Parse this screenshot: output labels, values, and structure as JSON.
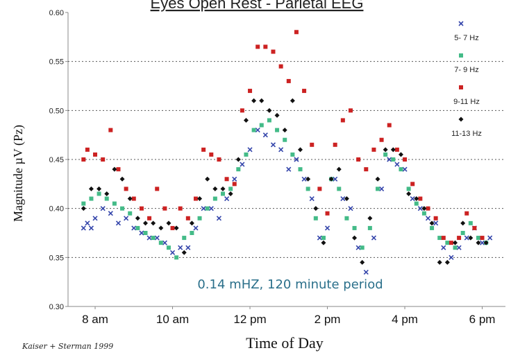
{
  "chart_data": {
    "type": "scatter",
    "title": "Eyes Open Rest - Parietal EEG",
    "xlabel": "Time of Day",
    "ylabel": "Magnitude µV (Pz)",
    "annotation": "0.14 mHZ, 120 minute period",
    "credit": "Kaiser + Sterman 1999",
    "ylim": [
      0.3,
      0.6
    ],
    "yticks": [
      "0.30",
      "0.35",
      "0.40",
      "0.45",
      "0.50",
      "0.55",
      "0.60"
    ],
    "xlim": [
      7.3,
      18.6
    ],
    "xticks": [
      {
        "label": "8 am",
        "value": 8
      },
      {
        "label": "10 am",
        "value": 10
      },
      {
        "label": "12 pm",
        "value": 12
      },
      {
        "label": "2 pm",
        "value": 14
      },
      {
        "label": "4 pm",
        "value": 16
      },
      {
        "label": "6 pm",
        "value": 18
      }
    ],
    "grid": "horizontal dotted at 0.35, 0.40, 0.45, 0.50, 0.55",
    "legend_position": "right",
    "series": [
      {
        "name": "5- 7 Hz",
        "color": "#3344aa",
        "marker": "x",
        "points": [
          [
            7.7,
            0.38
          ],
          [
            7.8,
            0.385
          ],
          [
            7.9,
            0.38
          ],
          [
            8.0,
            0.39
          ],
          [
            8.2,
            0.4
          ],
          [
            8.4,
            0.395
          ],
          [
            8.6,
            0.385
          ],
          [
            8.8,
            0.39
          ],
          [
            9.0,
            0.38
          ],
          [
            9.2,
            0.375
          ],
          [
            9.4,
            0.37
          ],
          [
            9.6,
            0.37
          ],
          [
            9.8,
            0.365
          ],
          [
            10.0,
            0.355
          ],
          [
            10.2,
            0.36
          ],
          [
            10.4,
            0.36
          ],
          [
            10.6,
            0.38
          ],
          [
            10.8,
            0.4
          ],
          [
            11.0,
            0.4
          ],
          [
            11.2,
            0.39
          ],
          [
            11.4,
            0.41
          ],
          [
            11.6,
            0.43
          ],
          [
            11.8,
            0.445
          ],
          [
            12.0,
            0.46
          ],
          [
            12.2,
            0.48
          ],
          [
            12.4,
            0.475
          ],
          [
            12.6,
            0.465
          ],
          [
            12.8,
            0.46
          ],
          [
            13.0,
            0.44
          ],
          [
            13.2,
            0.45
          ],
          [
            13.4,
            0.43
          ],
          [
            13.6,
            0.41
          ],
          [
            13.8,
            0.37
          ],
          [
            14.0,
            0.38
          ],
          [
            14.2,
            0.43
          ],
          [
            14.4,
            0.41
          ],
          [
            14.6,
            0.4
          ],
          [
            14.8,
            0.36
          ],
          [
            15.0,
            0.335
          ],
          [
            15.2,
            0.37
          ],
          [
            15.4,
            0.42
          ],
          [
            15.6,
            0.45
          ],
          [
            15.8,
            0.445
          ],
          [
            16.0,
            0.44
          ],
          [
            16.2,
            0.41
          ],
          [
            16.4,
            0.4
          ],
          [
            16.6,
            0.39
          ],
          [
            16.8,
            0.385
          ],
          [
            17.0,
            0.36
          ],
          [
            17.2,
            0.35
          ],
          [
            17.4,
            0.36
          ],
          [
            17.6,
            0.37
          ],
          [
            17.8,
            0.38
          ],
          [
            18.0,
            0.365
          ],
          [
            18.2,
            0.37
          ]
        ]
      },
      {
        "name": "7- 9 Hz",
        "color": "#44bb88",
        "marker": "square",
        "points": [
          [
            7.7,
            0.405
          ],
          [
            7.9,
            0.41
          ],
          [
            8.1,
            0.415
          ],
          [
            8.3,
            0.41
          ],
          [
            8.5,
            0.405
          ],
          [
            8.7,
            0.4
          ],
          [
            8.9,
            0.395
          ],
          [
            9.1,
            0.38
          ],
          [
            9.3,
            0.375
          ],
          [
            9.5,
            0.37
          ],
          [
            9.7,
            0.365
          ],
          [
            9.9,
            0.36
          ],
          [
            10.1,
            0.35
          ],
          [
            10.3,
            0.37
          ],
          [
            10.5,
            0.375
          ],
          [
            10.7,
            0.39
          ],
          [
            10.9,
            0.4
          ],
          [
            11.1,
            0.41
          ],
          [
            11.3,
            0.415
          ],
          [
            11.5,
            0.42
          ],
          [
            11.7,
            0.44
          ],
          [
            11.9,
            0.455
          ],
          [
            12.1,
            0.48
          ],
          [
            12.3,
            0.485
          ],
          [
            12.5,
            0.49
          ],
          [
            12.7,
            0.48
          ],
          [
            12.9,
            0.47
          ],
          [
            13.1,
            0.455
          ],
          [
            13.3,
            0.44
          ],
          [
            13.5,
            0.42
          ],
          [
            13.7,
            0.39
          ],
          [
            13.9,
            0.37
          ],
          [
            14.1,
            0.43
          ],
          [
            14.3,
            0.42
          ],
          [
            14.5,
            0.39
          ],
          [
            14.7,
            0.38
          ],
          [
            14.9,
            0.36
          ],
          [
            15.1,
            0.38
          ],
          [
            15.3,
            0.42
          ],
          [
            15.5,
            0.455
          ],
          [
            15.7,
            0.45
          ],
          [
            15.9,
            0.44
          ],
          [
            16.1,
            0.42
          ],
          [
            16.3,
            0.405
          ],
          [
            16.5,
            0.395
          ],
          [
            16.7,
            0.38
          ],
          [
            16.9,
            0.37
          ],
          [
            17.1,
            0.365
          ],
          [
            17.3,
            0.36
          ],
          [
            17.5,
            0.375
          ],
          [
            17.7,
            0.385
          ],
          [
            17.9,
            0.37
          ],
          [
            18.1,
            0.365
          ]
        ]
      },
      {
        "name": "9-11 Hz",
        "color": "#cc2222",
        "marker": "square",
        "points": [
          [
            7.7,
            0.45
          ],
          [
            7.8,
            0.46
          ],
          [
            8.0,
            0.455
          ],
          [
            8.2,
            0.45
          ],
          [
            8.4,
            0.48
          ],
          [
            8.6,
            0.44
          ],
          [
            8.8,
            0.42
          ],
          [
            9.0,
            0.41
          ],
          [
            9.2,
            0.4
          ],
          [
            9.4,
            0.39
          ],
          [
            9.6,
            0.42
          ],
          [
            9.8,
            0.4
          ],
          [
            10.0,
            0.38
          ],
          [
            10.2,
            0.4
          ],
          [
            10.4,
            0.39
          ],
          [
            10.6,
            0.41
          ],
          [
            10.8,
            0.46
          ],
          [
            11.0,
            0.455
          ],
          [
            11.2,
            0.45
          ],
          [
            11.4,
            0.43
          ],
          [
            11.6,
            0.425
          ],
          [
            11.8,
            0.5
          ],
          [
            12.0,
            0.52
          ],
          [
            12.2,
            0.565
          ],
          [
            12.4,
            0.565
          ],
          [
            12.6,
            0.56
          ],
          [
            12.8,
            0.545
          ],
          [
            13.0,
            0.53
          ],
          [
            13.2,
            0.58
          ],
          [
            13.4,
            0.52
          ],
          [
            13.6,
            0.465
          ],
          [
            13.8,
            0.42
          ],
          [
            14.0,
            0.395
          ],
          [
            14.2,
            0.465
          ],
          [
            14.4,
            0.49
          ],
          [
            14.6,
            0.5
          ],
          [
            14.8,
            0.45
          ],
          [
            15.0,
            0.44
          ],
          [
            15.2,
            0.46
          ],
          [
            15.4,
            0.47
          ],
          [
            15.6,
            0.485
          ],
          [
            15.8,
            0.46
          ],
          [
            16.0,
            0.45
          ],
          [
            16.2,
            0.425
          ],
          [
            16.4,
            0.41
          ],
          [
            16.6,
            0.4
          ],
          [
            16.8,
            0.39
          ],
          [
            17.0,
            0.37
          ],
          [
            17.2,
            0.365
          ],
          [
            17.4,
            0.37
          ],
          [
            17.6,
            0.395
          ],
          [
            17.8,
            0.38
          ],
          [
            18.0,
            0.37
          ]
        ]
      },
      {
        "name": "11-13 Hz",
        "color": "#111111",
        "marker": "diamond",
        "points": [
          [
            7.7,
            0.4
          ],
          [
            7.9,
            0.42
          ],
          [
            8.1,
            0.42
          ],
          [
            8.3,
            0.415
          ],
          [
            8.5,
            0.44
          ],
          [
            8.7,
            0.43
          ],
          [
            8.9,
            0.41
          ],
          [
            9.1,
            0.39
          ],
          [
            9.3,
            0.385
          ],
          [
            9.5,
            0.385
          ],
          [
            9.7,
            0.38
          ],
          [
            9.9,
            0.385
          ],
          [
            10.1,
            0.38
          ],
          [
            10.3,
            0.355
          ],
          [
            10.5,
            0.385
          ],
          [
            10.7,
            0.41
          ],
          [
            10.9,
            0.43
          ],
          [
            11.1,
            0.42
          ],
          [
            11.3,
            0.42
          ],
          [
            11.5,
            0.415
          ],
          [
            11.7,
            0.45
          ],
          [
            11.9,
            0.49
          ],
          [
            12.1,
            0.51
          ],
          [
            12.3,
            0.51
          ],
          [
            12.5,
            0.5
          ],
          [
            12.7,
            0.495
          ],
          [
            12.9,
            0.48
          ],
          [
            13.1,
            0.51
          ],
          [
            13.3,
            0.46
          ],
          [
            13.5,
            0.43
          ],
          [
            13.7,
            0.4
          ],
          [
            13.9,
            0.365
          ],
          [
            14.1,
            0.43
          ],
          [
            14.3,
            0.44
          ],
          [
            14.5,
            0.41
          ],
          [
            14.7,
            0.37
          ],
          [
            14.9,
            0.345
          ],
          [
            15.1,
            0.39
          ],
          [
            15.3,
            0.43
          ],
          [
            15.5,
            0.46
          ],
          [
            15.7,
            0.46
          ],
          [
            15.9,
            0.455
          ],
          [
            16.1,
            0.415
          ],
          [
            16.3,
            0.41
          ],
          [
            16.5,
            0.4
          ],
          [
            16.7,
            0.385
          ],
          [
            16.9,
            0.345
          ],
          [
            17.1,
            0.345
          ],
          [
            17.3,
            0.365
          ],
          [
            17.5,
            0.385
          ],
          [
            17.7,
            0.37
          ],
          [
            17.9,
            0.365
          ],
          [
            18.1,
            0.365
          ]
        ]
      }
    ]
  }
}
